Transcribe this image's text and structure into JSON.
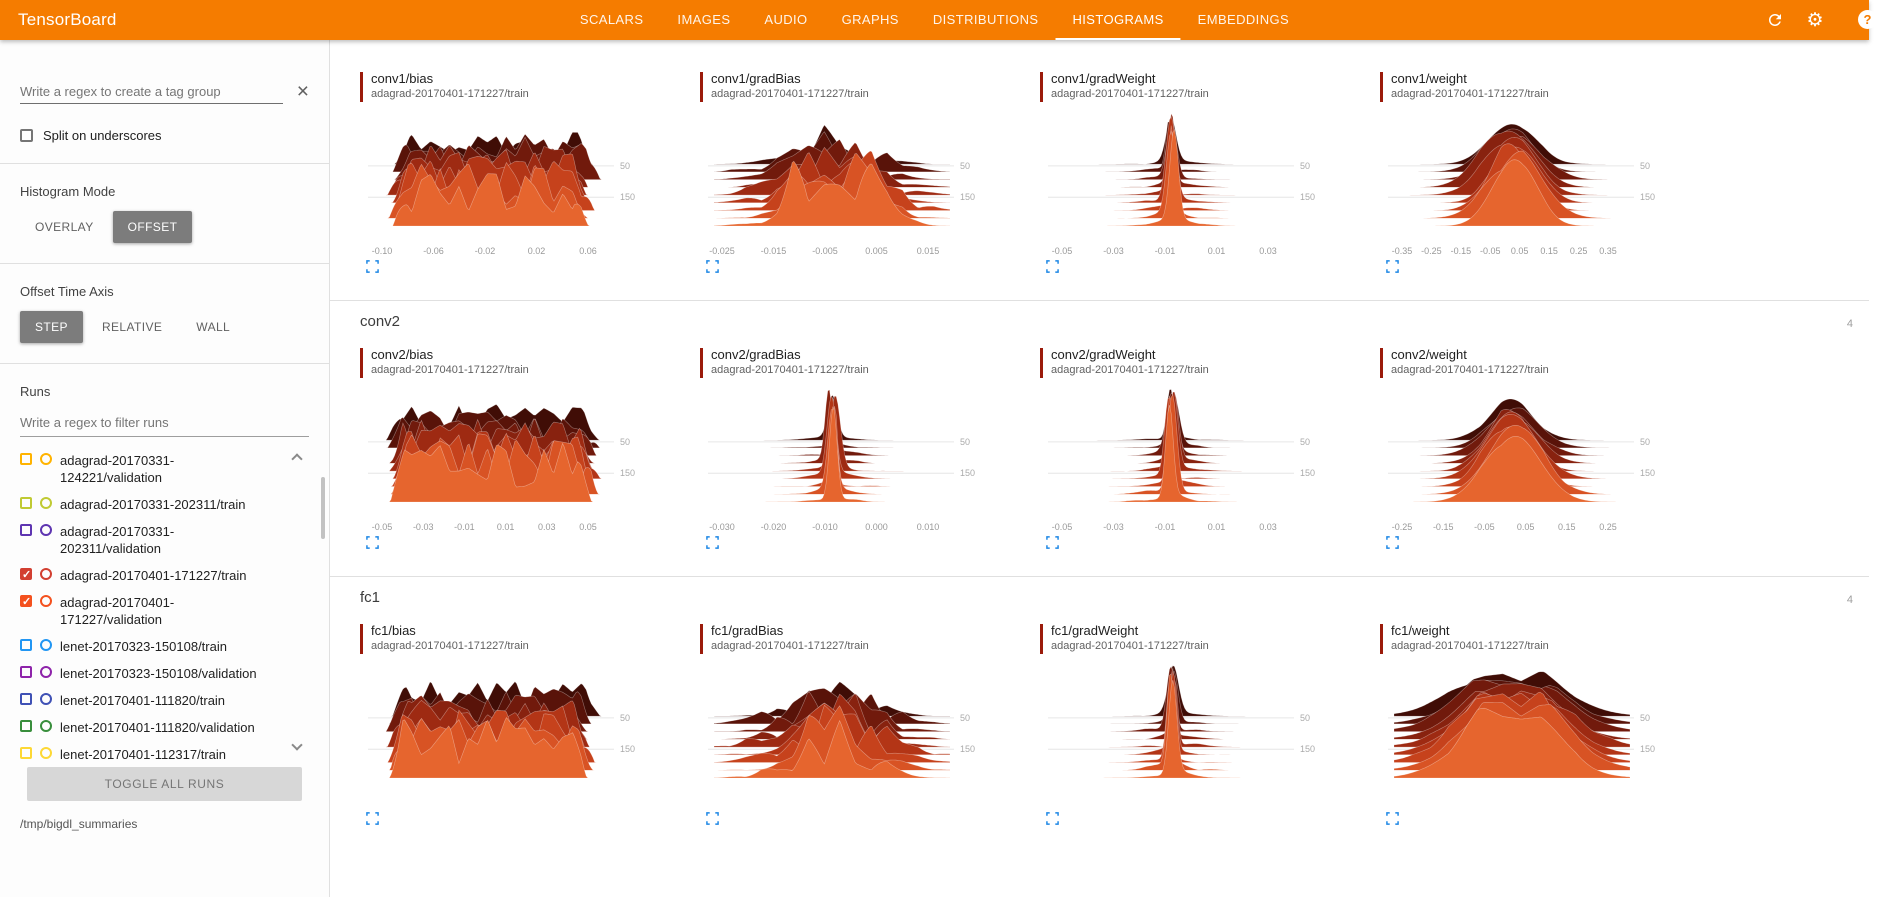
{
  "header": {
    "title": "TensorBoard",
    "tabs": [
      {
        "label": "SCALARS",
        "active": false
      },
      {
        "label": "IMAGES",
        "active": false
      },
      {
        "label": "AUDIO",
        "active": false
      },
      {
        "label": "GRAPHS",
        "active": false
      },
      {
        "label": "DISTRIBUTIONS",
        "active": false
      },
      {
        "label": "HISTOGRAMS",
        "active": true
      },
      {
        "label": "EMBEDDINGS",
        "active": false
      }
    ],
    "icons": {
      "refresh": "refresh-icon",
      "gear": "⚙",
      "help": "?",
      "close": "×"
    }
  },
  "sidebar": {
    "tag_filter_placeholder": "Write a regex to create a tag group",
    "split_label": "Split on underscores",
    "histogram_mode": {
      "label": "Histogram Mode",
      "options": [
        "OVERLAY",
        "OFFSET"
      ],
      "selected": "OFFSET"
    },
    "offset_time_axis": {
      "label": "Offset Time Axis",
      "options": [
        "STEP",
        "RELATIVE",
        "WALL"
      ],
      "selected": "STEP"
    },
    "runs": {
      "label": "Runs",
      "filter_placeholder": "Write a regex to filter runs",
      "items": [
        {
          "label": "adagrad-20170331-124221/validation",
          "color": "#ffb300",
          "checked": false
        },
        {
          "label": "adagrad-20170331-202311/train",
          "color": "#c0ca33",
          "checked": false
        },
        {
          "label": "adagrad-20170331-202311/validation",
          "color": "#5e35b1",
          "checked": false
        },
        {
          "label": "adagrad-20170401-171227/train",
          "color": "#d23f31",
          "checked": true
        },
        {
          "label": "adagrad-20170401-171227/validation",
          "color": "#f4511e",
          "checked": true
        },
        {
          "label": "lenet-20170323-150108/train",
          "color": "#2196f3",
          "checked": false
        },
        {
          "label": "lenet-20170323-150108/validation",
          "color": "#8e24aa",
          "checked": false
        },
        {
          "label": "lenet-20170401-111820/train",
          "color": "#3f51b5",
          "checked": false
        },
        {
          "label": "lenet-20170401-111820/validation",
          "color": "#388e3c",
          "checked": false
        },
        {
          "label": "lenet-20170401-112317/train",
          "color": "#fdd835",
          "checked": false
        }
      ],
      "toggle_button": "TOGGLE ALL RUNS",
      "log_dir": "/tmp/bigdl_summaries"
    }
  },
  "colors": {
    "header_bg": "#f57c00",
    "expand_icon": "#1e88e5",
    "run_indicator": "#9b1b0b",
    "ridge_palette": [
      "#400d06",
      "#591309",
      "#711a0c",
      "#88220f",
      "#9e2a12",
      "#b33516",
      "#c6421c",
      "#d85324",
      "#e6652e"
    ]
  },
  "main": {
    "groups": [
      {
        "name": "",
        "count": "",
        "charts": [
          {
            "title": "conv1/bias",
            "run": "adagrad-20170401-171227/train",
            "type": "ridgeline-histogram",
            "profile": "noisy",
            "seed": 11,
            "x_ticks": [
              "-0.10",
              "-0.06",
              "-0.02",
              "0.02",
              "0.06"
            ],
            "y_ticks": [
              "50",
              "150"
            ]
          },
          {
            "title": "conv1/gradBias",
            "run": "adagrad-20170401-171227/train",
            "type": "ridgeline-histogram",
            "profile": "bumpy",
            "seed": 21,
            "x_ticks": [
              "-0.025",
              "-0.015",
              "-0.005",
              "0.005",
              "0.015"
            ],
            "y_ticks": [
              "50",
              "150"
            ]
          },
          {
            "title": "conv1/gradWeight",
            "run": "adagrad-20170401-171227/train",
            "type": "ridgeline-histogram",
            "profile": "spike",
            "seed": 31,
            "x_ticks": [
              "-0.05",
              "-0.03",
              "-0.01",
              "0.01",
              "0.03"
            ],
            "y_ticks": [
              "50",
              "150"
            ]
          },
          {
            "title": "conv1/weight",
            "run": "adagrad-20170401-171227/train",
            "type": "ridgeline-histogram",
            "profile": "bell",
            "seed": 41,
            "x_ticks": [
              "-0.35",
              "-0.25",
              "-0.15",
              "-0.05",
              "0.05",
              "0.15",
              "0.25",
              "0.35"
            ],
            "y_ticks": [
              "50",
              "150"
            ]
          }
        ]
      },
      {
        "name": "conv2",
        "count": "4",
        "charts": [
          {
            "title": "conv2/bias",
            "run": "adagrad-20170401-171227/train",
            "type": "ridgeline-histogram",
            "profile": "noisy",
            "seed": 51,
            "x_ticks": [
              "-0.05",
              "-0.03",
              "-0.01",
              "0.01",
              "0.03",
              "0.05"
            ],
            "y_ticks": [
              "50",
              "150"
            ]
          },
          {
            "title": "conv2/gradBias",
            "run": "adagrad-20170401-171227/train",
            "type": "ridgeline-histogram",
            "profile": "spike",
            "seed": 61,
            "x_ticks": [
              "-0.030",
              "-0.020",
              "-0.010",
              "0.000",
              "0.010"
            ],
            "y_ticks": [
              "50",
              "150"
            ]
          },
          {
            "title": "conv2/gradWeight",
            "run": "adagrad-20170401-171227/train",
            "type": "ridgeline-histogram",
            "profile": "spike",
            "seed": 71,
            "x_ticks": [
              "-0.05",
              "-0.03",
              "-0.01",
              "0.01",
              "0.03"
            ],
            "y_ticks": [
              "50",
              "150"
            ]
          },
          {
            "title": "conv2/weight",
            "run": "adagrad-20170401-171227/train",
            "type": "ridgeline-histogram",
            "profile": "bell",
            "seed": 81,
            "x_ticks": [
              "-0.25",
              "-0.15",
              "-0.05",
              "0.05",
              "0.15",
              "0.25"
            ],
            "y_ticks": [
              "50",
              "150"
            ]
          }
        ]
      },
      {
        "name": "fc1",
        "count": "4",
        "charts": [
          {
            "title": "fc1/bias",
            "run": "adagrad-20170401-171227/train",
            "type": "ridgeline-histogram",
            "profile": "noisy",
            "seed": 91,
            "x_ticks": [],
            "y_ticks": [
              "50",
              "150"
            ]
          },
          {
            "title": "fc1/gradBias",
            "run": "adagrad-20170401-171227/train",
            "type": "ridgeline-histogram",
            "profile": "bumpy",
            "seed": 101,
            "x_ticks": [],
            "y_ticks": [
              "50",
              "150"
            ]
          },
          {
            "title": "fc1/gradWeight",
            "run": "adagrad-20170401-171227/train",
            "type": "ridgeline-histogram",
            "profile": "spike",
            "seed": 111,
            "x_ticks": [],
            "y_ticks": [
              "50",
              "150"
            ]
          },
          {
            "title": "fc1/weight",
            "run": "adagrad-20170401-171227/train",
            "type": "ridgeline-histogram",
            "profile": "plateau",
            "seed": 121,
            "x_ticks": [],
            "y_ticks": [
              "50",
              "150"
            ]
          }
        ]
      }
    ]
  }
}
